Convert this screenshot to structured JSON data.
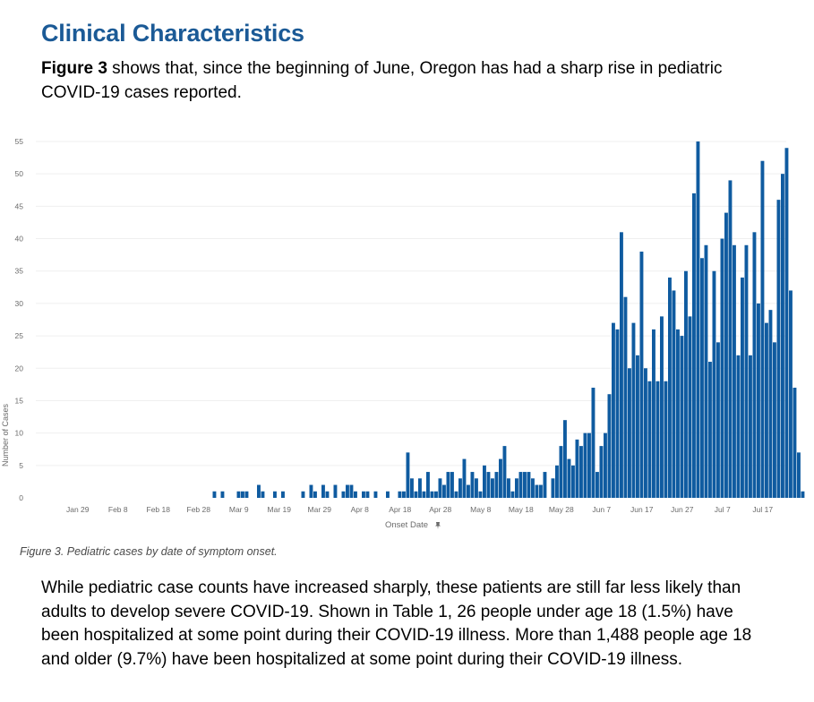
{
  "section": {
    "heading": "Clinical Characteristics",
    "intro_bold": "Figure 3",
    "intro_rest": " shows that, since the beginning of June, Oregon has had a sharp rise in pediatric COVID-19 cases reported."
  },
  "caption": "Figure 3. Pediatric cases by date of symptom onset.",
  "body_text": "While pediatric case counts have increased sharply, these patients are still far less likely than adults to develop severe COVID-19. Shown in Table 1, 26 people under age 18 (1.5%) have been hospitalized at some point during their COVID-19 illness. More than 1,488 people age 18 and older (9.7%) have been hospitalized at some point during their COVID-19 illness.",
  "colors": {
    "heading": "#1b5a96",
    "bar": "#0f5ba0",
    "axis_text": "#6b6b6b",
    "grid": "#efefef"
  },
  "chart_data": {
    "type": "bar",
    "title": "",
    "xlabel": "Onset Date",
    "xlabel_icon": "pin-icon",
    "ylabel": "Number of Cases",
    "ylim": [
      0,
      55
    ],
    "yticks": [
      0,
      5,
      10,
      15,
      20,
      25,
      30,
      35,
      40,
      45,
      50,
      55
    ],
    "grid": true,
    "x_start": "Jan 21",
    "x_end": "Jul 25",
    "xticks": [
      "Jan 29",
      "Feb 8",
      "Feb 18",
      "Feb 28",
      "Mar 9",
      "Mar 19",
      "Mar 29",
      "Apr 8",
      "Apr 18",
      "Apr 28",
      "May 8",
      "May 18",
      "May 28",
      "Jun 7",
      "Jun 17",
      "Jun 27",
      "Jul 7",
      "Jul 17"
    ],
    "points": [
      {
        "x": "Mar 3",
        "y": 1
      },
      {
        "x": "Mar 5",
        "y": 1
      },
      {
        "x": "Mar 9",
        "y": 1
      },
      {
        "x": "Mar 10",
        "y": 1
      },
      {
        "x": "Mar 11",
        "y": 1
      },
      {
        "x": "Mar 14",
        "y": 2
      },
      {
        "x": "Mar 15",
        "y": 1
      },
      {
        "x": "Mar 18",
        "y": 1
      },
      {
        "x": "Mar 20",
        "y": 1
      },
      {
        "x": "Mar 25",
        "y": 1
      },
      {
        "x": "Mar 27",
        "y": 2
      },
      {
        "x": "Mar 28",
        "y": 1
      },
      {
        "x": "Mar 30",
        "y": 2
      },
      {
        "x": "Mar 31",
        "y": 1
      },
      {
        "x": "Apr 2",
        "y": 2
      },
      {
        "x": "Apr 4",
        "y": 1
      },
      {
        "x": "Apr 5",
        "y": 2
      },
      {
        "x": "Apr 6",
        "y": 2
      },
      {
        "x": "Apr 7",
        "y": 1
      },
      {
        "x": "Apr 9",
        "y": 1
      },
      {
        "x": "Apr 10",
        "y": 1
      },
      {
        "x": "Apr 12",
        "y": 1
      },
      {
        "x": "Apr 15",
        "y": 1
      },
      {
        "x": "Apr 18",
        "y": 1
      },
      {
        "x": "Apr 19",
        "y": 1
      },
      {
        "x": "Apr 20",
        "y": 7
      },
      {
        "x": "Apr 21",
        "y": 3
      },
      {
        "x": "Apr 22",
        "y": 1
      },
      {
        "x": "Apr 23",
        "y": 3
      },
      {
        "x": "Apr 24",
        "y": 1
      },
      {
        "x": "Apr 25",
        "y": 4
      },
      {
        "x": "Apr 26",
        "y": 1
      },
      {
        "x": "Apr 27",
        "y": 1
      },
      {
        "x": "Apr 28",
        "y": 3
      },
      {
        "x": "Apr 29",
        "y": 2
      },
      {
        "x": "Apr 30",
        "y": 4
      },
      {
        "x": "May 1",
        "y": 4
      },
      {
        "x": "May 2",
        "y": 1
      },
      {
        "x": "May 3",
        "y": 3
      },
      {
        "x": "May 4",
        "y": 6
      },
      {
        "x": "May 5",
        "y": 2
      },
      {
        "x": "May 6",
        "y": 4
      },
      {
        "x": "May 7",
        "y": 3
      },
      {
        "x": "May 8",
        "y": 1
      },
      {
        "x": "May 9",
        "y": 5
      },
      {
        "x": "May 10",
        "y": 4
      },
      {
        "x": "May 11",
        "y": 3
      },
      {
        "x": "May 12",
        "y": 4
      },
      {
        "x": "May 13",
        "y": 6
      },
      {
        "x": "May 14",
        "y": 8
      },
      {
        "x": "May 15",
        "y": 3
      },
      {
        "x": "May 16",
        "y": 1
      },
      {
        "x": "May 17",
        "y": 3
      },
      {
        "x": "May 18",
        "y": 4
      },
      {
        "x": "May 19",
        "y": 4
      },
      {
        "x": "May 20",
        "y": 4
      },
      {
        "x": "May 21",
        "y": 3
      },
      {
        "x": "May 22",
        "y": 2
      },
      {
        "x": "May 23",
        "y": 2
      },
      {
        "x": "May 24",
        "y": 4
      },
      {
        "x": "May 26",
        "y": 3
      },
      {
        "x": "May 27",
        "y": 5
      },
      {
        "x": "May 28",
        "y": 8
      },
      {
        "x": "May 29",
        "y": 12
      },
      {
        "x": "May 30",
        "y": 6
      },
      {
        "x": "May 31",
        "y": 5
      },
      {
        "x": "Jun 1",
        "y": 9
      },
      {
        "x": "Jun 2",
        "y": 8
      },
      {
        "x": "Jun 3",
        "y": 10
      },
      {
        "x": "Jun 4",
        "y": 10
      },
      {
        "x": "Jun 5",
        "y": 17
      },
      {
        "x": "Jun 6",
        "y": 4
      },
      {
        "x": "Jun 7",
        "y": 8
      },
      {
        "x": "Jun 8",
        "y": 10
      },
      {
        "x": "Jun 9",
        "y": 16
      },
      {
        "x": "Jun 10",
        "y": 27
      },
      {
        "x": "Jun 11",
        "y": 26
      },
      {
        "x": "Jun 12",
        "y": 41
      },
      {
        "x": "Jun 13",
        "y": 31
      },
      {
        "x": "Jun 14",
        "y": 20
      },
      {
        "x": "Jun 15",
        "y": 27
      },
      {
        "x": "Jun 16",
        "y": 22
      },
      {
        "x": "Jun 17",
        "y": 38
      },
      {
        "x": "Jun 18",
        "y": 20
      },
      {
        "x": "Jun 19",
        "y": 18
      },
      {
        "x": "Jun 20",
        "y": 26
      },
      {
        "x": "Jun 21",
        "y": 18
      },
      {
        "x": "Jun 22",
        "y": 28
      },
      {
        "x": "Jun 23",
        "y": 18
      },
      {
        "x": "Jun 24",
        "y": 34
      },
      {
        "x": "Jun 25",
        "y": 32
      },
      {
        "x": "Jun 26",
        "y": 26
      },
      {
        "x": "Jun 27",
        "y": 25
      },
      {
        "x": "Jun 28",
        "y": 35
      },
      {
        "x": "Jun 29",
        "y": 28
      },
      {
        "x": "Jun 30",
        "y": 47
      },
      {
        "x": "Jul 1",
        "y": 55
      },
      {
        "x": "Jul 2",
        "y": 37
      },
      {
        "x": "Jul 3",
        "y": 39
      },
      {
        "x": "Jul 4",
        "y": 21
      },
      {
        "x": "Jul 5",
        "y": 35
      },
      {
        "x": "Jul 6",
        "y": 24
      },
      {
        "x": "Jul 7",
        "y": 40
      },
      {
        "x": "Jul 8",
        "y": 44
      },
      {
        "x": "Jul 9",
        "y": 49
      },
      {
        "x": "Jul 10",
        "y": 39
      },
      {
        "x": "Jul 11",
        "y": 22
      },
      {
        "x": "Jul 12",
        "y": 34
      },
      {
        "x": "Jul 13",
        "y": 39
      },
      {
        "x": "Jul 14",
        "y": 22
      },
      {
        "x": "Jul 15",
        "y": 41
      },
      {
        "x": "Jul 16",
        "y": 30
      },
      {
        "x": "Jul 17",
        "y": 52
      },
      {
        "x": "Jul 18",
        "y": 27
      },
      {
        "x": "Jul 19",
        "y": 29
      },
      {
        "x": "Jul 20",
        "y": 24
      },
      {
        "x": "Jul 21",
        "y": 46
      },
      {
        "x": "Jul 22",
        "y": 50
      },
      {
        "x": "Jul 23",
        "y": 54
      },
      {
        "x": "Jul 24",
        "y": 32
      },
      {
        "x": "Jul 25",
        "y": 17
      },
      {
        "x": "Jul 26",
        "y": 7
      },
      {
        "x": "Jul 27",
        "y": 1
      }
    ]
  }
}
